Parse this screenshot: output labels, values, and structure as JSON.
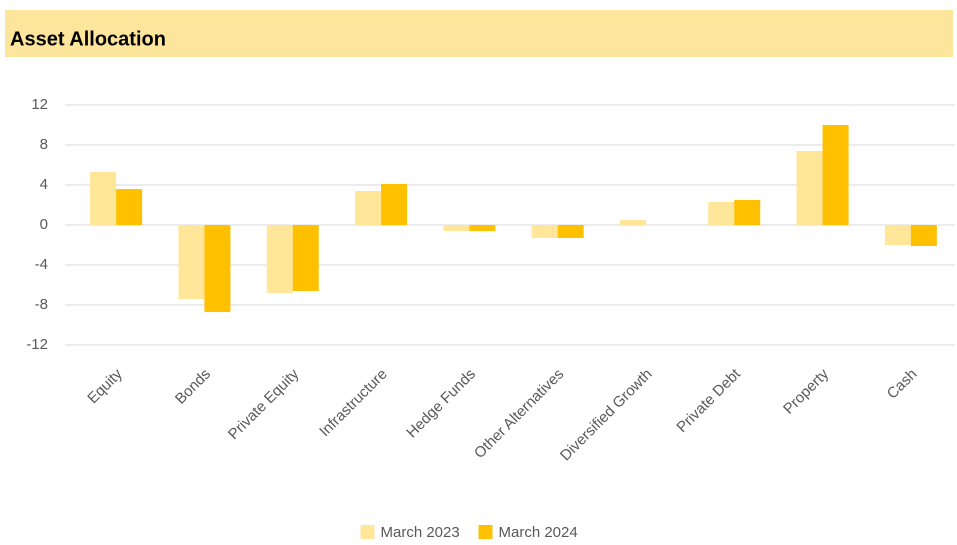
{
  "chart_data": {
    "type": "bar",
    "title": "Asset Allocation",
    "categories": [
      "Equity",
      "Bonds",
      "Private Equity",
      "Infrastructure",
      "Hedge Funds",
      "Other Alternatives",
      "Diversified Growth",
      "Private Debt",
      "Property",
      "Cash"
    ],
    "series": [
      {
        "name": "March 2023",
        "color": "#ffe699",
        "values": [
          5.3,
          -7.4,
          -6.8,
          3.4,
          -0.6,
          -1.3,
          0.5,
          2.3,
          7.4,
          -2.0
        ]
      },
      {
        "name": "March 2024",
        "color": "#ffc000",
        "values": [
          3.6,
          -8.7,
          -6.6,
          4.1,
          -0.6,
          -1.3,
          0,
          2.5,
          10.0,
          -2.1
        ]
      }
    ],
    "ylim": [
      -12,
      12
    ],
    "yticks": [
      -12,
      -8,
      -4,
      0,
      4,
      8,
      12
    ],
    "grid": true,
    "legend": "bottom"
  }
}
